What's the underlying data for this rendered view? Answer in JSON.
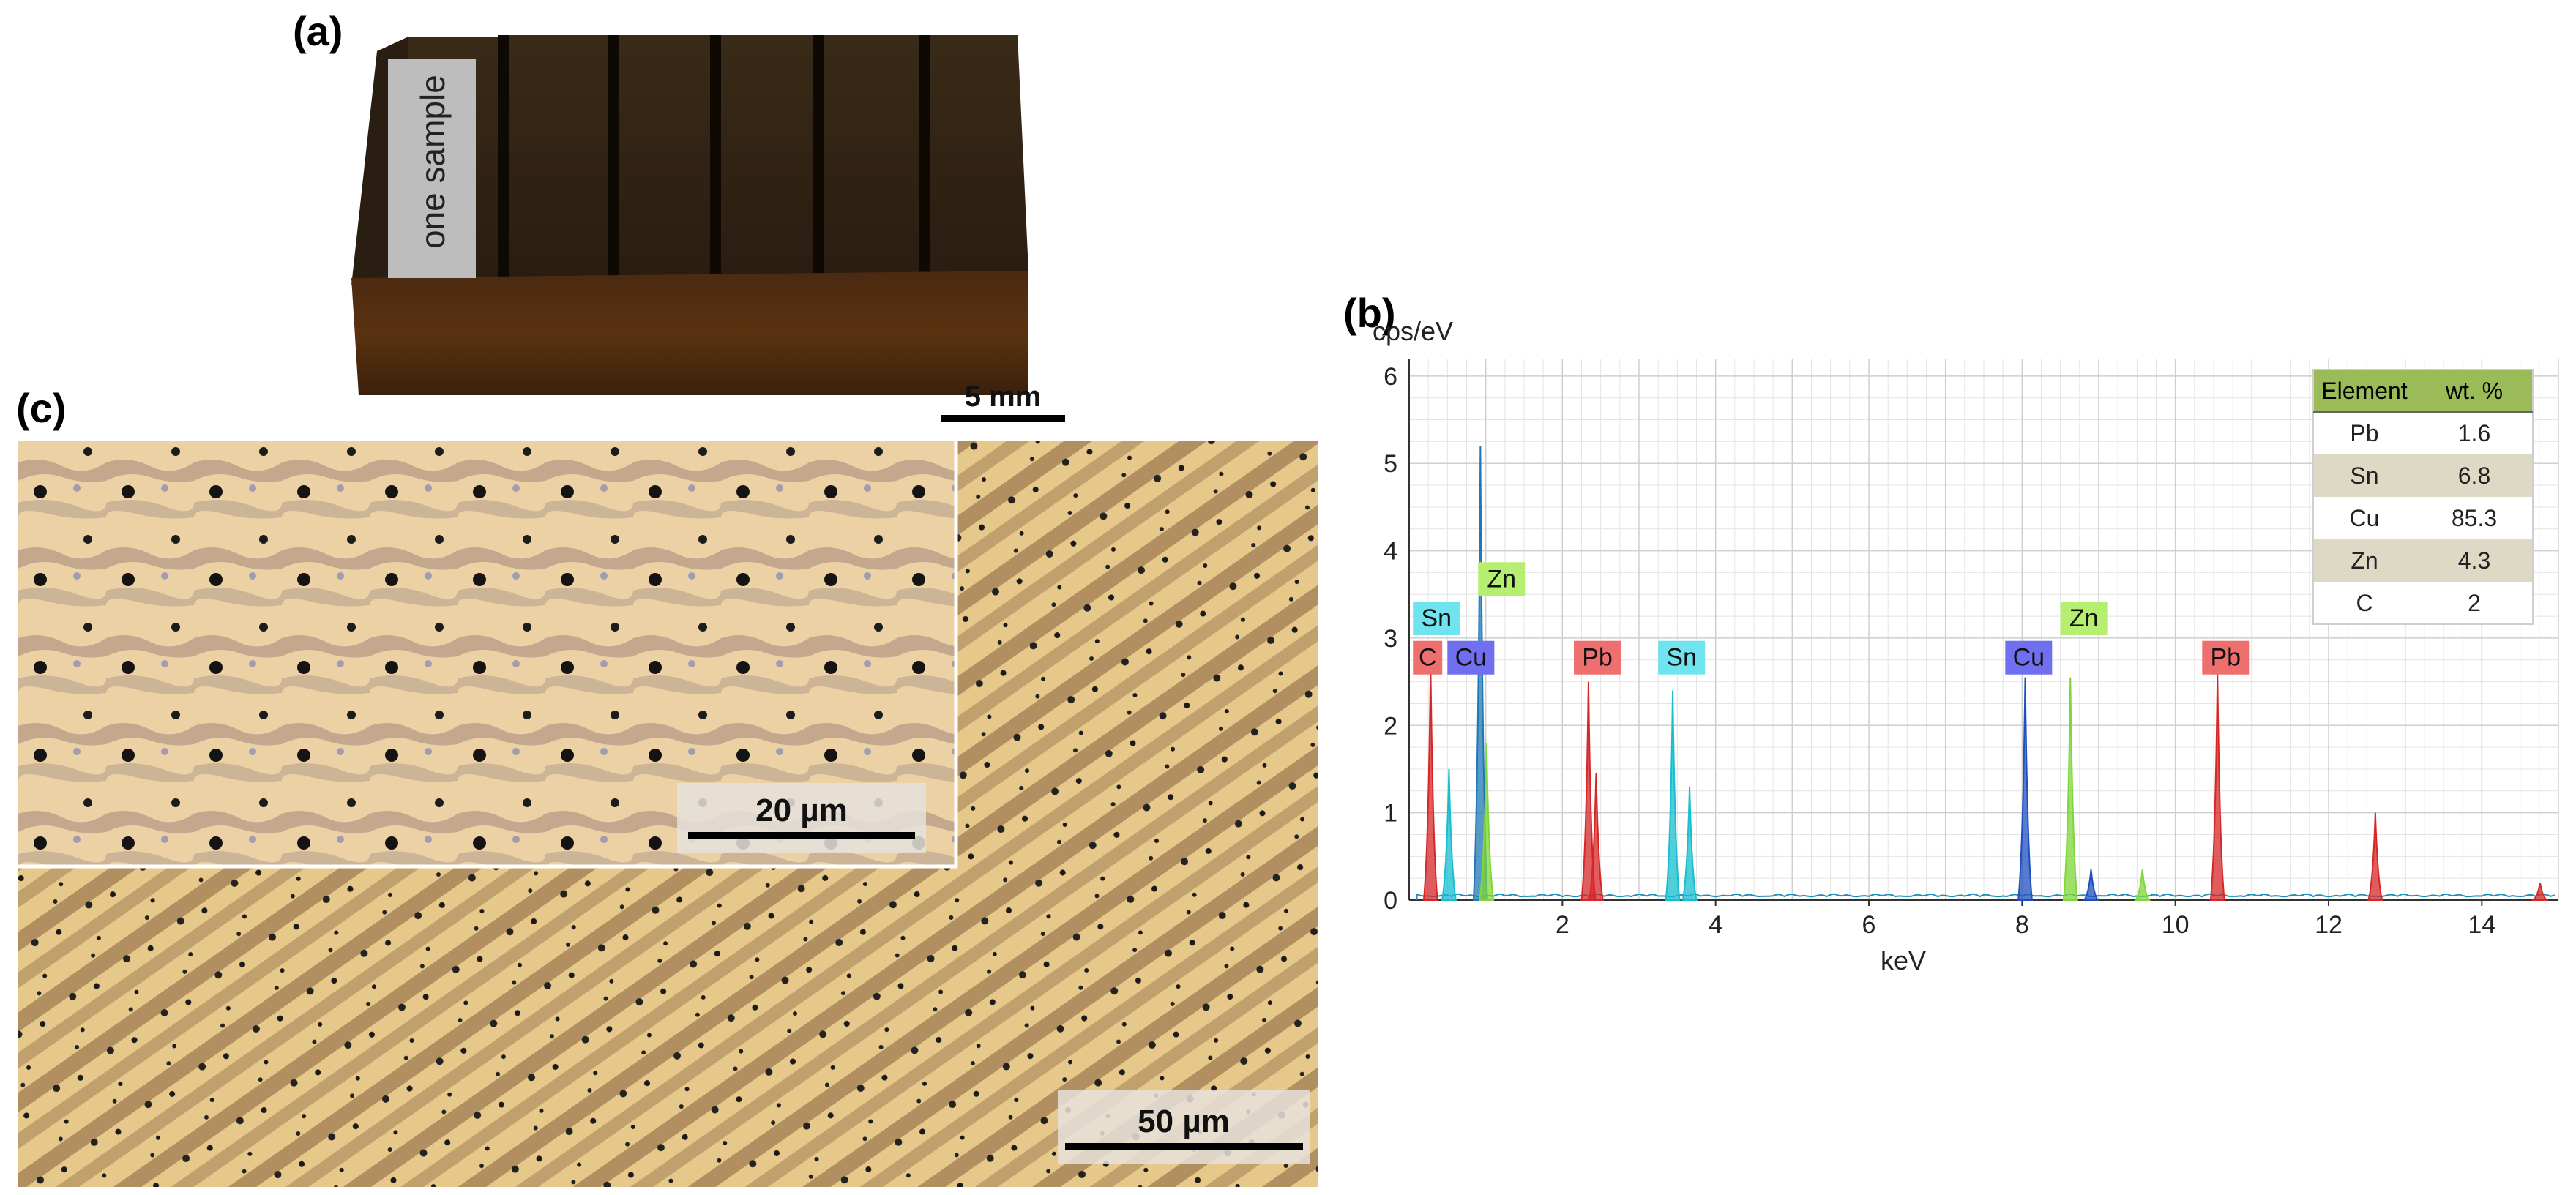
{
  "panels": {
    "a": {
      "label": "(a)",
      "sample_text": "one sample",
      "scale": "5 mm"
    },
    "b": {
      "label": "(b)"
    },
    "c": {
      "label": "(c)",
      "inset_scale": "20 µm",
      "main_scale": "50 µm"
    }
  },
  "chart_data": {
    "type": "line",
    "title": "",
    "xlabel": "keV",
    "ylabel": "cps/eV",
    "xlim": [
      0,
      15
    ],
    "ylim": [
      0,
      6.2
    ],
    "xticks": [
      2,
      4,
      6,
      8,
      10,
      12,
      14
    ],
    "yticks": [
      0,
      1,
      2,
      3,
      4,
      5,
      6
    ],
    "grid": true,
    "peaks": [
      {
        "x": 0.28,
        "y": 2.7,
        "color": "#d62728"
      },
      {
        "x": 0.52,
        "y": 1.5,
        "color": "#17becf"
      },
      {
        "x": 0.93,
        "y": 5.2,
        "color": "#1f77b4"
      },
      {
        "x": 1.01,
        "y": 1.8,
        "color": "#7fd63a"
      },
      {
        "x": 2.34,
        "y": 2.5,
        "color": "#d62728"
      },
      {
        "x": 2.44,
        "y": 1.45,
        "color": "#d62728"
      },
      {
        "x": 3.44,
        "y": 2.4,
        "color": "#17becf"
      },
      {
        "x": 3.66,
        "y": 1.3,
        "color": "#17becf"
      },
      {
        "x": 8.04,
        "y": 2.55,
        "color": "#1f4fbf"
      },
      {
        "x": 8.63,
        "y": 2.55,
        "color": "#7fd63a"
      },
      {
        "x": 8.9,
        "y": 0.35,
        "color": "#1f4fbf"
      },
      {
        "x": 9.57,
        "y": 0.35,
        "color": "#7fd63a"
      },
      {
        "x": 10.55,
        "y": 2.6,
        "color": "#d62728"
      },
      {
        "x": 12.61,
        "y": 1.0,
        "color": "#d62728"
      },
      {
        "x": 14.76,
        "y": 0.2,
        "color": "#d62728"
      }
    ],
    "element_labels": [
      {
        "text": "Sn",
        "x": 0.05,
        "y": 3.1,
        "color": "#6fe4ef"
      },
      {
        "text": "Zn",
        "x": 0.9,
        "y": 3.55,
        "color": "#b6ef6f"
      },
      {
        "text": "C",
        "x": 0.05,
        "y": 2.65,
        "color": "#ef6f6f"
      },
      {
        "text": "Cu",
        "x": 0.5,
        "y": 2.65,
        "color": "#6f6fef"
      },
      {
        "text": "Pb",
        "x": 2.15,
        "y": 2.65,
        "color": "#ef6f6f"
      },
      {
        "text": "Sn",
        "x": 3.25,
        "y": 2.65,
        "color": "#6fe4ef"
      },
      {
        "text": "Cu",
        "x": 7.78,
        "y": 2.65,
        "color": "#6f6fef"
      },
      {
        "text": "Zn",
        "x": 8.5,
        "y": 3.1,
        "color": "#b6ef6f"
      },
      {
        "text": "Pb",
        "x": 10.35,
        "y": 2.65,
        "color": "#ef6f6f"
      }
    ],
    "table": {
      "headers": [
        "Element",
        "wt. %"
      ],
      "rows": [
        [
          "Pb",
          "1.6"
        ],
        [
          "Sn",
          "6.8"
        ],
        [
          "Cu",
          "85.3"
        ],
        [
          "Zn",
          "4.3"
        ],
        [
          "C",
          "2"
        ]
      ],
      "header_color": "#9bbb59",
      "band_color": "#ddd9c4"
    }
  }
}
